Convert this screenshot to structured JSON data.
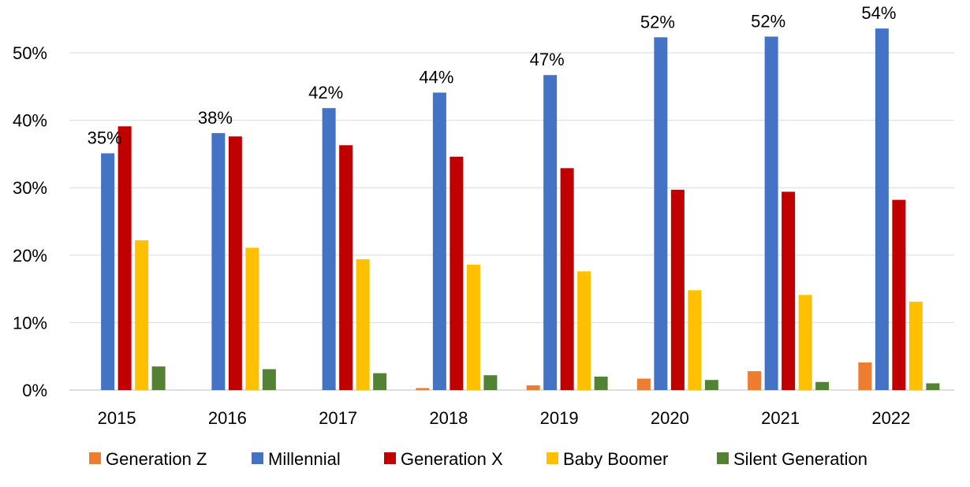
{
  "chart_data": {
    "type": "bar",
    "categories": [
      "2015",
      "2016",
      "2017",
      "2018",
      "2019",
      "2020",
      "2021",
      "2022"
    ],
    "series": [
      {
        "name": "Generation Z",
        "color": "#ED7D31",
        "values": [
          0,
          0,
          0,
          0.3,
          0.7,
          1.7,
          2.8,
          4.1
        ]
      },
      {
        "name": "Millennial",
        "color": "#4472C4",
        "values": [
          35.1,
          38.1,
          41.8,
          44.1,
          46.7,
          52.3,
          52.4,
          53.6
        ],
        "data_labels": [
          "35%",
          "38%",
          "42%",
          "44%",
          "47%",
          "52%",
          "52%",
          "54%"
        ]
      },
      {
        "name": "Generation X",
        "color": "#C00000",
        "values": [
          39.1,
          37.6,
          36.3,
          34.6,
          32.9,
          29.7,
          29.4,
          28.2
        ]
      },
      {
        "name": "Baby Boomer",
        "color": "#FFC000",
        "values": [
          22.2,
          21.1,
          19.4,
          18.6,
          17.6,
          14.8,
          14.1,
          13.1
        ]
      },
      {
        "name": "Silent Generation",
        "color": "#548235",
        "values": [
          3.5,
          3.1,
          2.5,
          2.2,
          2.0,
          1.5,
          1.2,
          1.0
        ]
      }
    ],
    "ylim": [
      0,
      55
    ],
    "yticks": [
      0,
      10,
      20,
      30,
      40,
      50
    ],
    "ytick_labels": [
      "0%",
      "10%",
      "20%",
      "30%",
      "40%",
      "50%"
    ],
    "grid": true,
    "legend_position": "bottom",
    "title": "",
    "xlabel": "",
    "ylabel": ""
  }
}
